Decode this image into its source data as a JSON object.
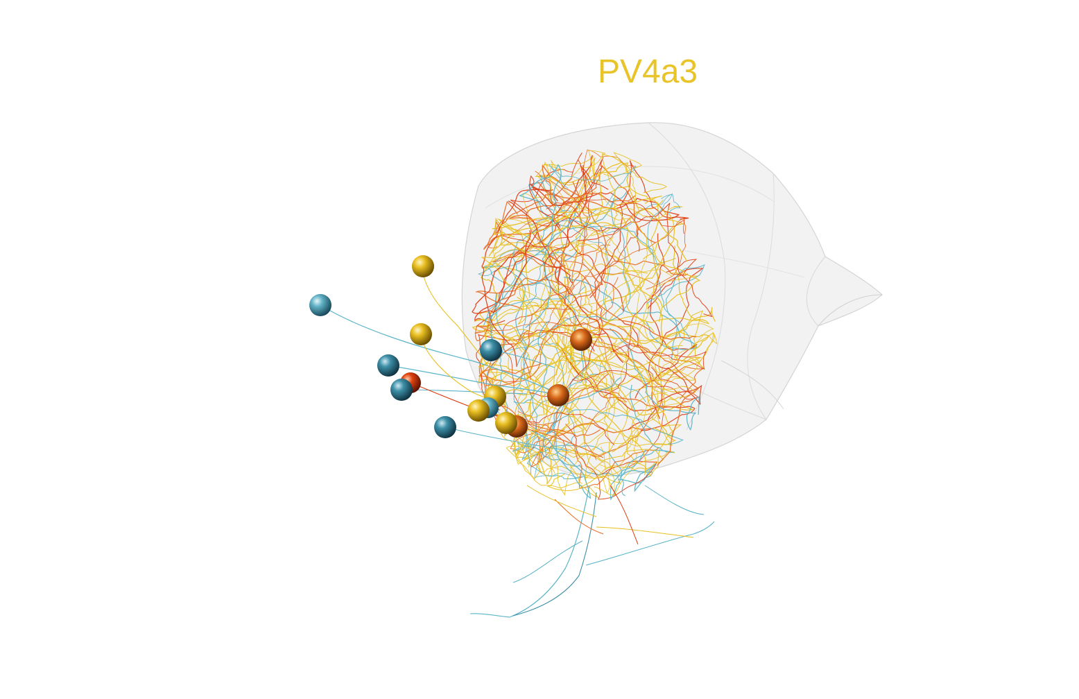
{
  "title": {
    "text": "PV4a3",
    "color": "#E8C429"
  },
  "colors": {
    "background": "#ffffff",
    "neuropil_fill": "#e6e6e6",
    "neuropil_edge": "#d0d0d0",
    "yellow": "#E8C01F",
    "orange": "#E86C1F",
    "red": "#E03A10",
    "teal": "#5AB4C8",
    "steel_blue": "#3E8FA8"
  },
  "scene": {
    "neuropil_label": "",
    "neuron_classes": [
      "yellow",
      "orange",
      "red",
      "teal",
      "steel_blue"
    ]
  }
}
